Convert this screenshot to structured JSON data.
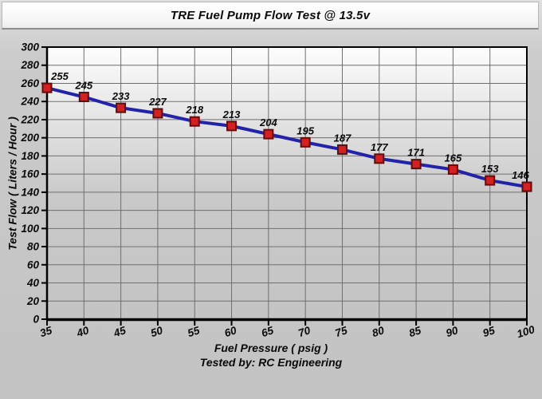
{
  "title": "TRE Fuel Pump Flow Test @ 13.5v",
  "chart_data": {
    "type": "line",
    "x": [
      35,
      40,
      45,
      50,
      55,
      60,
      65,
      70,
      75,
      80,
      85,
      90,
      95,
      100
    ],
    "values": [
      255,
      245,
      233,
      227,
      218,
      213,
      204,
      195,
      187,
      177,
      171,
      165,
      153,
      146
    ],
    "point_labels": [
      "255",
      "245",
      "233",
      "227",
      "218",
      "213",
      "204",
      "195",
      "187",
      "177",
      "171",
      "165",
      "153",
      "146"
    ],
    "title": "TRE Fuel Pump Flow Test @ 13.5v",
    "xlabel": "Fuel Pressure ( psig )",
    "ylabel": "Test Flow ( Liters / Hour )",
    "footer": "Tested by: RC Engineering",
    "xlim": [
      35,
      100
    ],
    "ylim": [
      0,
      300
    ],
    "x_ticks": [
      35,
      40,
      45,
      50,
      55,
      60,
      65,
      70,
      75,
      80,
      85,
      90,
      95,
      100
    ],
    "y_ticks": [
      0,
      20,
      40,
      60,
      80,
      100,
      120,
      140,
      160,
      180,
      200,
      220,
      240,
      260,
      280,
      300
    ],
    "grid": true,
    "legend": false,
    "colors": {
      "line": "#2323aa",
      "marker_fill": "#d32020",
      "marker_border": "#600d0d",
      "grid": "#6f6f6f",
      "axis": "#000000",
      "text": "#0a0a0a"
    }
  }
}
